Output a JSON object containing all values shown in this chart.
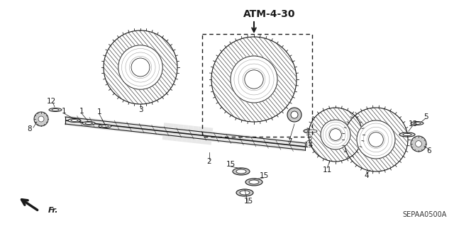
{
  "background_color": "#ffffff",
  "atm_label": "ATM-4-30",
  "diagram_code": "SEPAA0500A",
  "fr_label": "Fr.",
  "line_color": "#1a1a1a",
  "label_fontsize": 7.5,
  "atm_fontsize": 10,
  "code_fontsize": 7
}
